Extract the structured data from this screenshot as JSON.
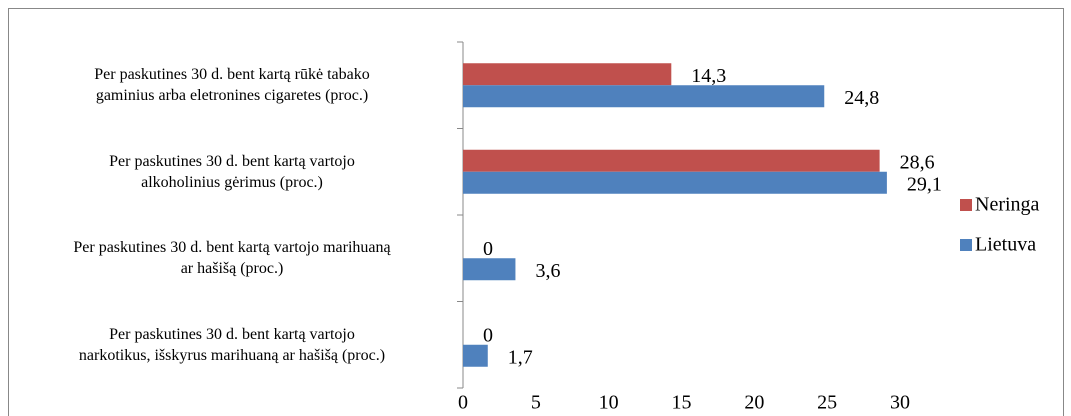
{
  "chart_data": {
    "type": "bar",
    "orientation": "horizontal",
    "categories": [
      "Per paskutines 30 d. bent kartą rūkė tabako\ngaminius arba eletronines cigaretes (proc.)",
      "Per paskutines 30 d. bent kartą vartojo\nalkoholinius gėrimus (proc.)",
      "Per paskutines 30 d. bent kartą vartojo marihuaną\nar hašišą (proc.)",
      "Per paskutines 30 d. bent kartą vartojo\nnarkotikus, išskyrus marihuaną ar hašišą (proc.)"
    ],
    "series": [
      {
        "name": "Neringa",
        "color": "#c0504d",
        "values": [
          14.3,
          28.6,
          0,
          0
        ],
        "value_labels": [
          "14,3",
          "28,6",
          "0",
          "0"
        ]
      },
      {
        "name": "Lietuva",
        "color": "#4f81bd",
        "values": [
          24.8,
          29.1,
          3.6,
          1.7
        ],
        "value_labels": [
          "24,8",
          "29,1",
          "3,6",
          "1,7"
        ]
      }
    ],
    "xlim": [
      0,
      30
    ],
    "xticks": [
      0,
      5,
      10,
      15,
      20,
      25,
      30
    ],
    "legend": "right"
  }
}
